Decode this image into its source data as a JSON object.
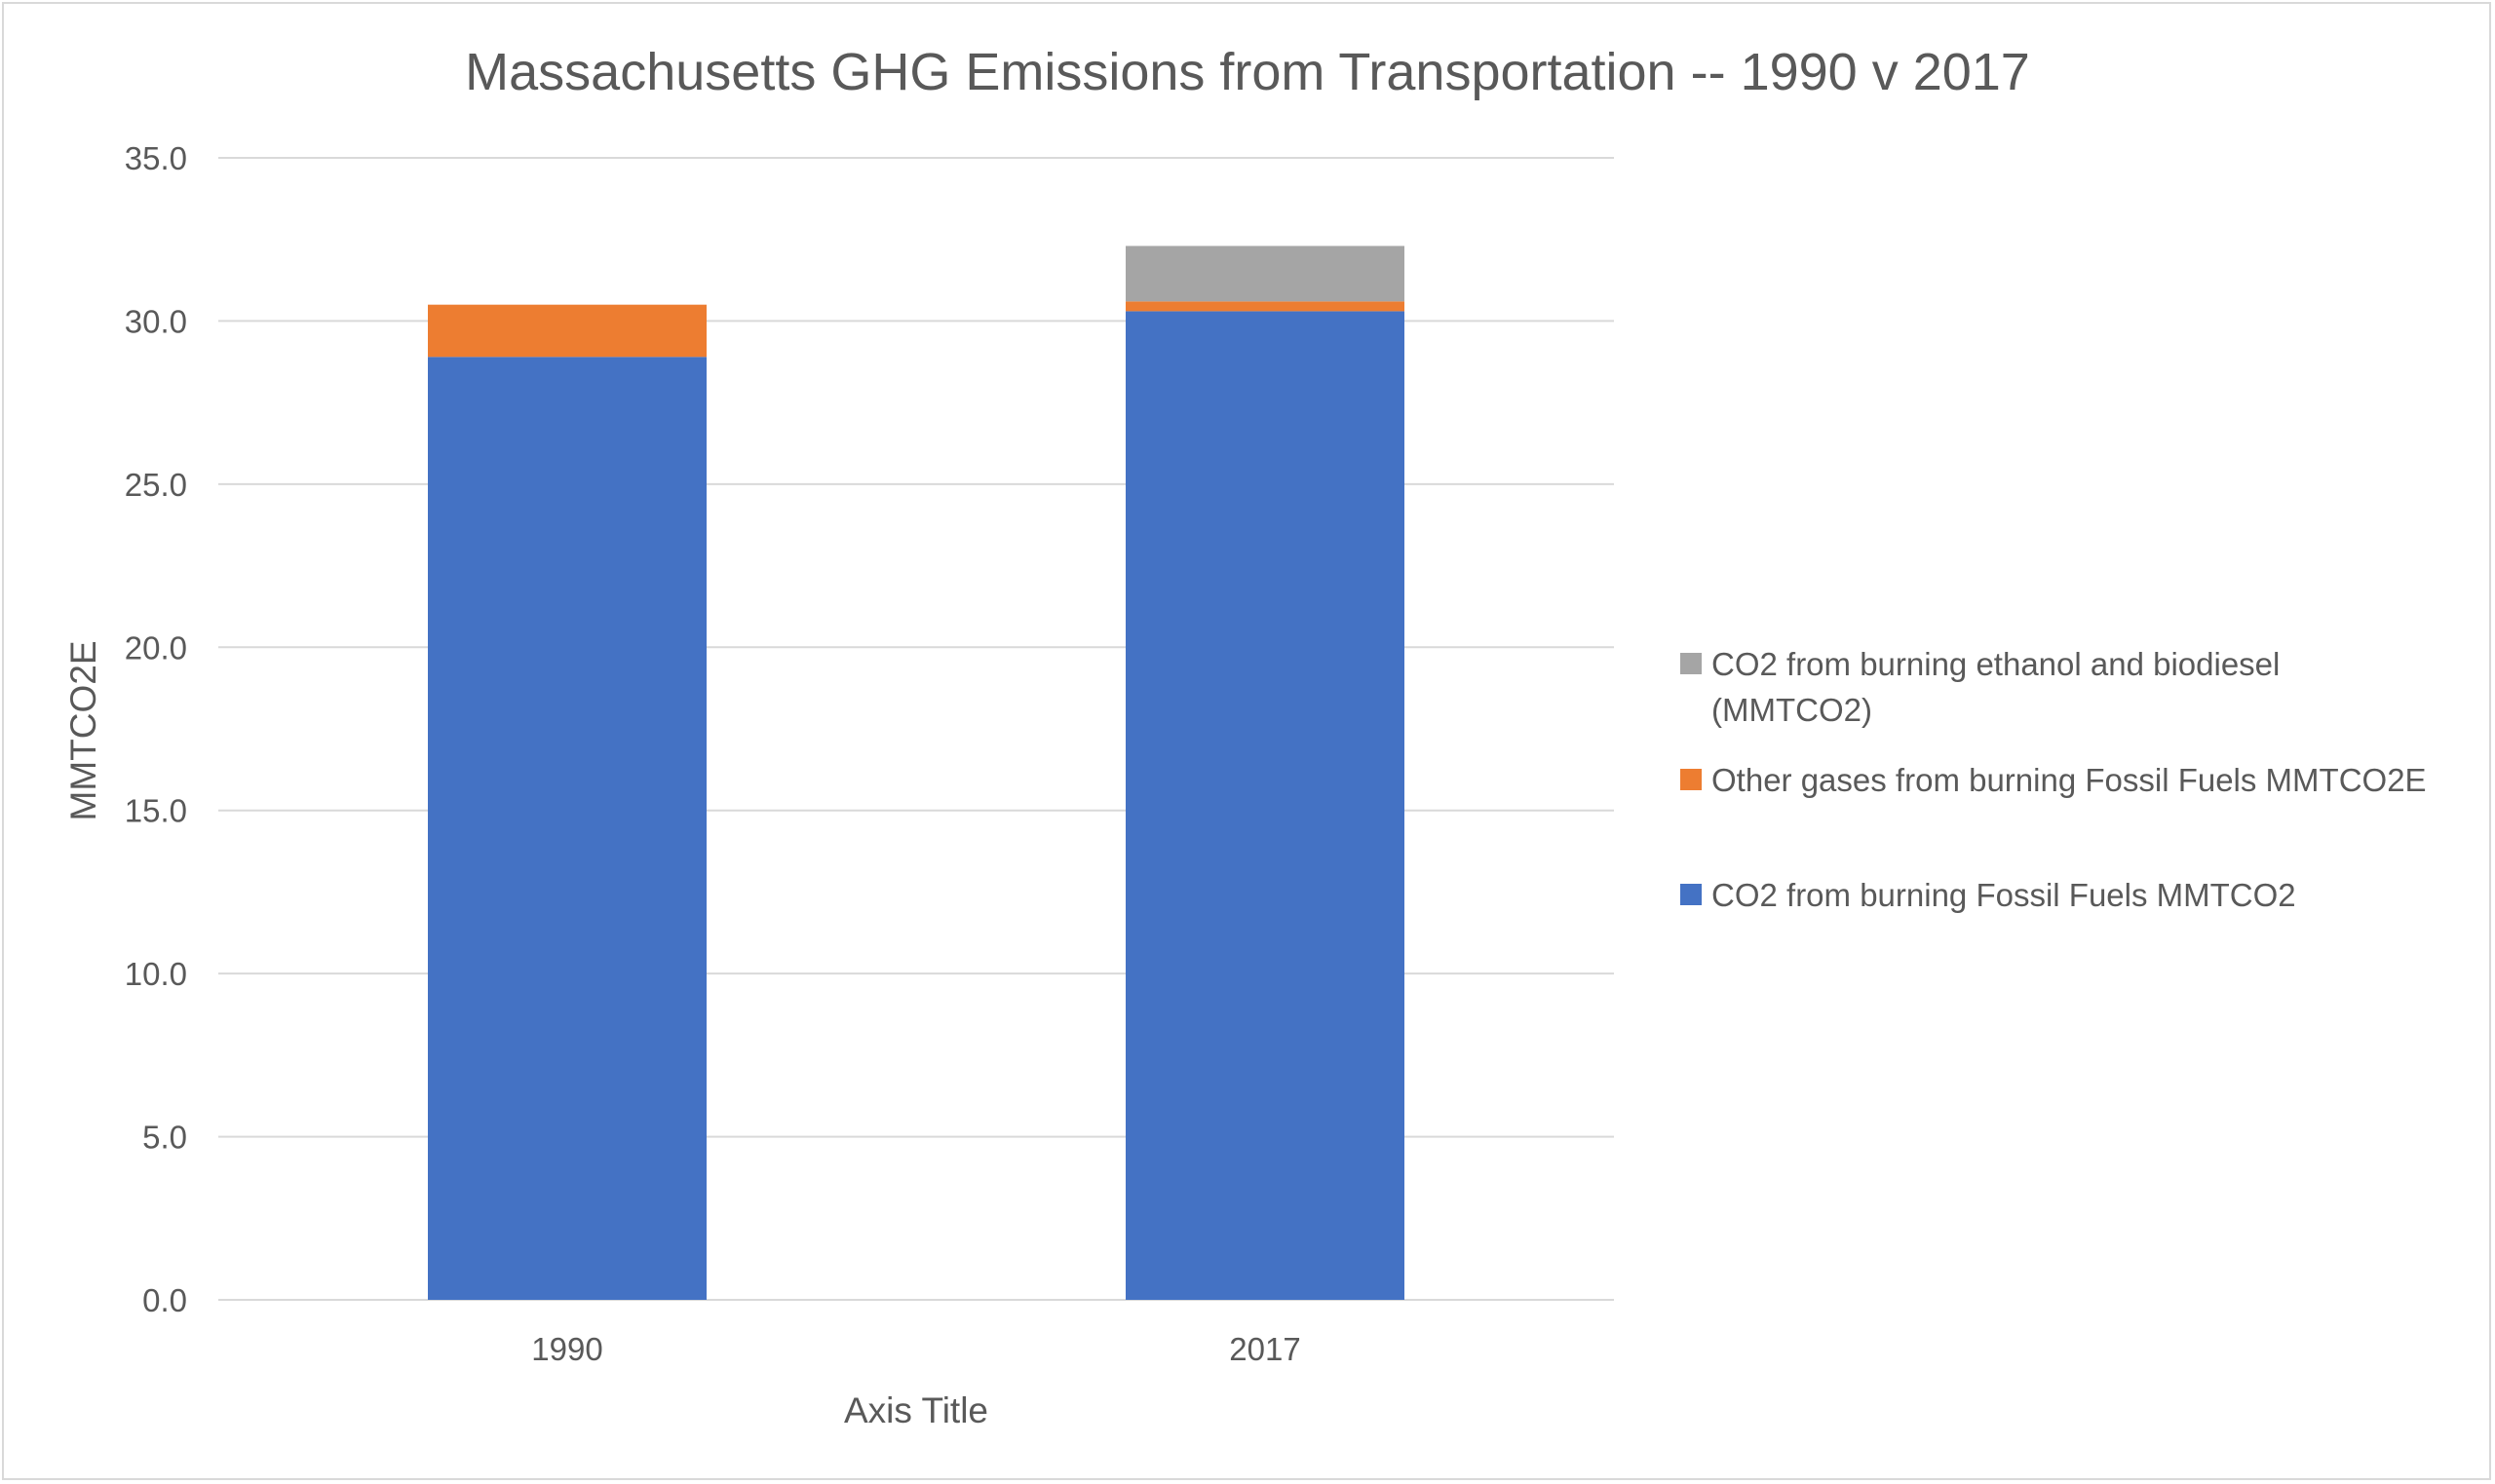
{
  "colors": {
    "co2_fossil": "#4472c4",
    "other_gases": "#ed7d31",
    "co2_bio": "#a5a5a5",
    "text": "#595959",
    "grid": "#d9d9d9"
  },
  "chart_data": {
    "type": "bar",
    "stacked": true,
    "title": "Massachusetts GHG Emissions from Transportation -- 1990 v 2017",
    "xlabel": "Axis Title",
    "ylabel": "MMTCO2E",
    "ylim": [
      0,
      35
    ],
    "ytick_step": 5,
    "yticks": [
      "0.0",
      "5.0",
      "10.0",
      "15.0",
      "20.0",
      "25.0",
      "30.0",
      "35.0"
    ],
    "grid": true,
    "legend_position": "right",
    "categories": [
      "1990",
      "2017"
    ],
    "series": [
      {
        "name": "CO2 from burning Fossil Fuels  MMTCO2",
        "color_key": "co2_fossil",
        "values": [
          28.9,
          30.3
        ]
      },
      {
        "name": "Other gases from burning Fossil Fuels  MMTCO2E",
        "color_key": "other_gases",
        "values": [
          1.6,
          0.3
        ]
      },
      {
        "name": "CO2 from burning ethanol and biodiesel (MMTCO2)",
        "color_key": "co2_bio",
        "values": [
          0.0,
          1.7
        ]
      }
    ],
    "legend_entries": [
      {
        "series_index": 2,
        "lines": [
          "CO2 from burning ethanol and biodiesel",
          "(MMTCO2)"
        ]
      },
      {
        "series_index": 1,
        "lines": [
          "Other gases from burning Fossil Fuels  MMTCO2E"
        ]
      },
      {
        "series_index": 0,
        "lines": [
          "CO2 from burning Fossil Fuels  MMTCO2"
        ]
      }
    ]
  }
}
